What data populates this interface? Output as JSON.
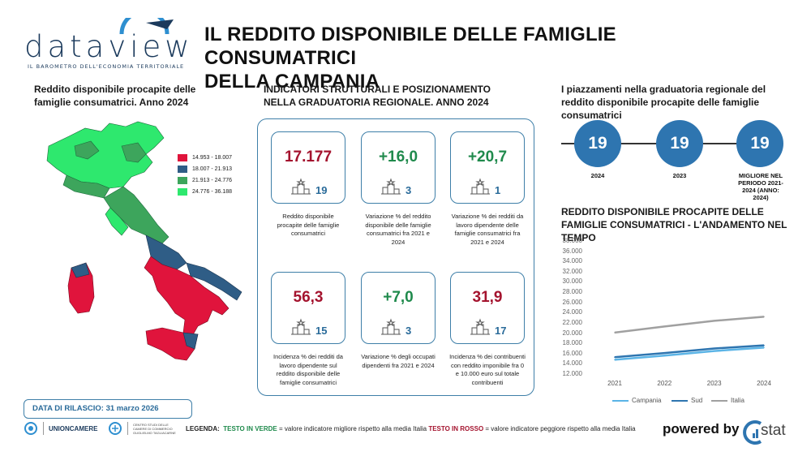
{
  "header": {
    "logo_word": "dataview",
    "logo_tagline": "IL BAROMETRO DELL'ECONOMIA TERRITORIALE",
    "title_line1": "IL REDDITO DISPONIBILE DELLE FAMIGLIE CONSUMATRICI",
    "title_line2": "DELLA CAMPANIA"
  },
  "map_section": {
    "title": "Reddito disponibile procapite delle famiglie consumatrici. Anno 2024",
    "legend": [
      {
        "label": "14.953 - 18.007",
        "color": "#e0143c"
      },
      {
        "label": "18.007 - 21.913",
        "color": "#2f5d86"
      },
      {
        "label": "21.913 - 24.776",
        "color": "#3da55c"
      },
      {
        "label": "24.776 - 36.188",
        "color": "#2ee86e"
      }
    ]
  },
  "indicators_section": {
    "title": "INDICATORI STRUTTURALI E POSIZIONAMENTO NELLA GRADUATORIA REGIONALE. ANNO 2024",
    "cards": [
      {
        "value": "17.177",
        "rank": "19",
        "tone": "red",
        "desc": "Reddito disponibile procapite delle famiglie consumatrici"
      },
      {
        "value": "+16,0",
        "rank": "3",
        "tone": "green",
        "desc": "Variazione % del reddito disponibile delle famiglie consumatrici fra 2021 e 2024"
      },
      {
        "value": "+20,7",
        "rank": "1",
        "tone": "green",
        "desc": "Variazione % dei redditi da lavoro dipendente delle famiglie consumatrici fra 2021 e 2024"
      },
      {
        "value": "56,3",
        "rank": "15",
        "tone": "red",
        "desc": "Incidenza % dei redditi da lavoro dipendente sul reddito disponibile delle famiglie consumatrici"
      },
      {
        "value": "+7,0",
        "rank": "3",
        "tone": "green",
        "desc": "Variazione % degli occupati dipendenti fra 2021 e 2024"
      },
      {
        "value": "31,9",
        "rank": "17",
        "tone": "red",
        "desc": "Incidenza % dei contribuenti con reddito imponibile fra 0 e 10.000 euro sul totale contribuenti"
      }
    ]
  },
  "ranking_section": {
    "title": "I piazzamenti nella graduatoria regionale del reddito disponibile procapite delle famiglie consumatrici",
    "items": [
      {
        "value": "19",
        "label": "2024"
      },
      {
        "value": "19",
        "label": "2023"
      },
      {
        "value": "19",
        "label": "MIGLIORE NEL PERIODO 2021-2024 (ANNO: 2024)"
      }
    ]
  },
  "trend_section": {
    "title": "REDDITO DISPONIBILE PROCAPITE DELLE FAMIGLIE CONSUMATRICI - L'ANDAMENTO NEL TEMPO"
  },
  "chart_data": {
    "type": "line",
    "x": [
      "2021",
      "2022",
      "2023",
      "2024"
    ],
    "yticks": [
      "38.000",
      "36.000",
      "34.000",
      "32.000",
      "30.000",
      "28.000",
      "26.000",
      "24.000",
      "22.000",
      "20.000",
      "18.000",
      "16.000",
      "14.000",
      "12.000"
    ],
    "ylim": [
      12000,
      38000
    ],
    "grid": false,
    "legend_position": "bottom",
    "series": [
      {
        "name": "Campania",
        "color": "#5bb4e6",
        "values": [
          14800,
          15600,
          16500,
          17177
        ]
      },
      {
        "name": "Sud",
        "color": "#2e75b0",
        "values": [
          15300,
          16100,
          17000,
          17600
        ]
      },
      {
        "name": "Italia",
        "color": "#a0a0a0",
        "values": [
          20100,
          21300,
          22400,
          23200
        ]
      }
    ]
  },
  "footer": {
    "release": "DATA DI RILASCIO: 31 marzo 2026",
    "unioncamere": "UNIONCAMERE",
    "tagliacarne": "CENTRO STUDI DELLE CAMERE DI COMMERCIO GUGLIELMO TAGLIACARNE",
    "legend_label": "LEGENDA:",
    "legend_green": "TESTO IN VERDE",
    "legend_green_text": " = valore indicatore migliore rispetto alla media Italia ",
    "legend_red": "TESTO IN ROSSO",
    "legend_red_text": " = valore indicatore peggiore rispetto alla media Italia",
    "powered": "powered by",
    "istat": "stat"
  }
}
